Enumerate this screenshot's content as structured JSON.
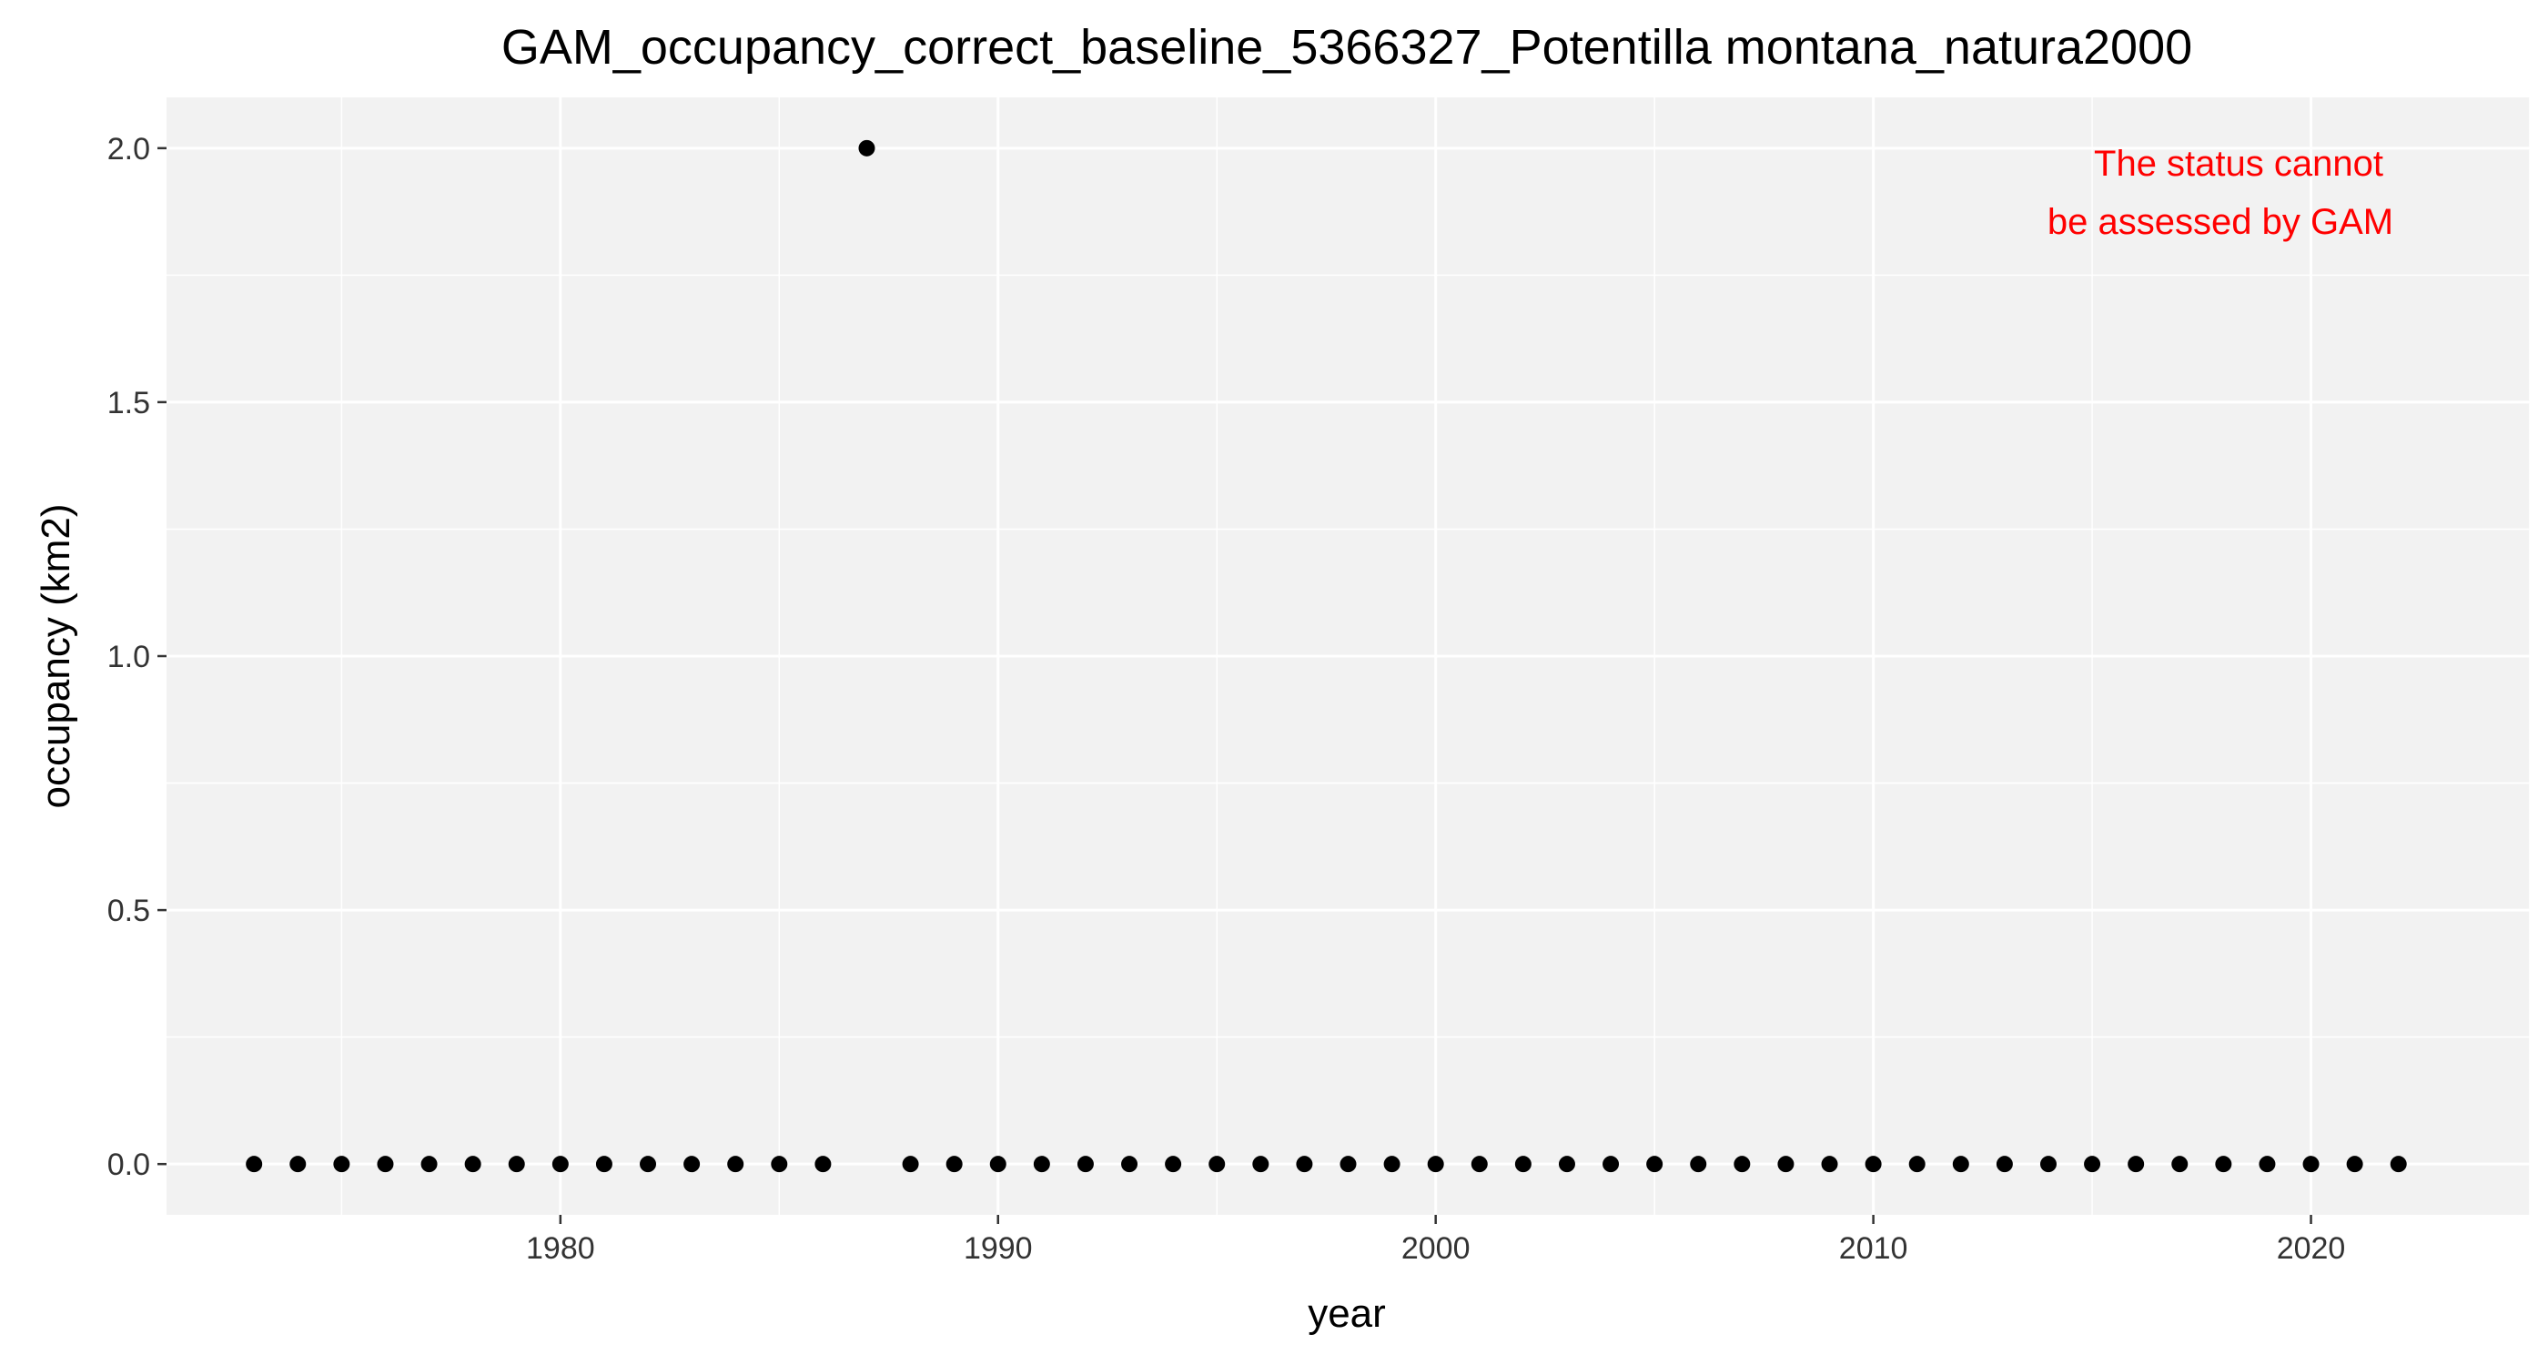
{
  "chart_data": {
    "type": "scatter",
    "title": "GAM_occupancy_correct_baseline_5366327_Potentilla montana_natura2000",
    "xlabel": "year",
    "ylabel": "occupancy (km2)",
    "xlim": [
      1971,
      2025
    ],
    "ylim": [
      -0.1,
      2.1
    ],
    "x_ticks": [
      1980,
      1990,
      2000,
      2010,
      2020
    ],
    "x_tick_labels": [
      "1980",
      "1990",
      "2000",
      "2010",
      "2020"
    ],
    "y_ticks": [
      0.0,
      0.5,
      1.0,
      1.5,
      2.0
    ],
    "y_tick_labels": [
      "0.0",
      "0.5",
      "1.0",
      "1.5",
      "2.0"
    ],
    "grid": true,
    "legend": "none",
    "colors": {
      "panel": "#f2f2f2",
      "grid": "#ffffff",
      "point": "#000000",
      "annotation": "#ff0000"
    },
    "annotation": {
      "lines": [
        "The status cannot",
        "be assessed by GAM"
      ]
    },
    "x": [
      1973,
      1974,
      1975,
      1976,
      1977,
      1978,
      1979,
      1980,
      1981,
      1982,
      1983,
      1984,
      1985,
      1986,
      1987,
      1988,
      1989,
      1990,
      1991,
      1992,
      1993,
      1994,
      1995,
      1996,
      1997,
      1998,
      1999,
      2000,
      2001,
      2002,
      2003,
      2004,
      2005,
      2006,
      2007,
      2008,
      2009,
      2010,
      2011,
      2012,
      2013,
      2014,
      2015,
      2016,
      2017,
      2018,
      2019,
      2020,
      2021,
      2022
    ],
    "y": [
      0,
      0,
      0,
      0,
      0,
      0,
      0,
      0,
      0,
      0,
      0,
      0,
      0,
      0,
      2,
      0,
      0,
      0,
      0,
      0,
      0,
      0,
      0,
      0,
      0,
      0,
      0,
      0,
      0,
      0,
      0,
      0,
      0,
      0,
      0,
      0,
      0,
      0,
      0,
      0,
      0,
      0,
      0,
      0,
      0,
      0,
      0,
      0,
      0,
      0
    ]
  }
}
